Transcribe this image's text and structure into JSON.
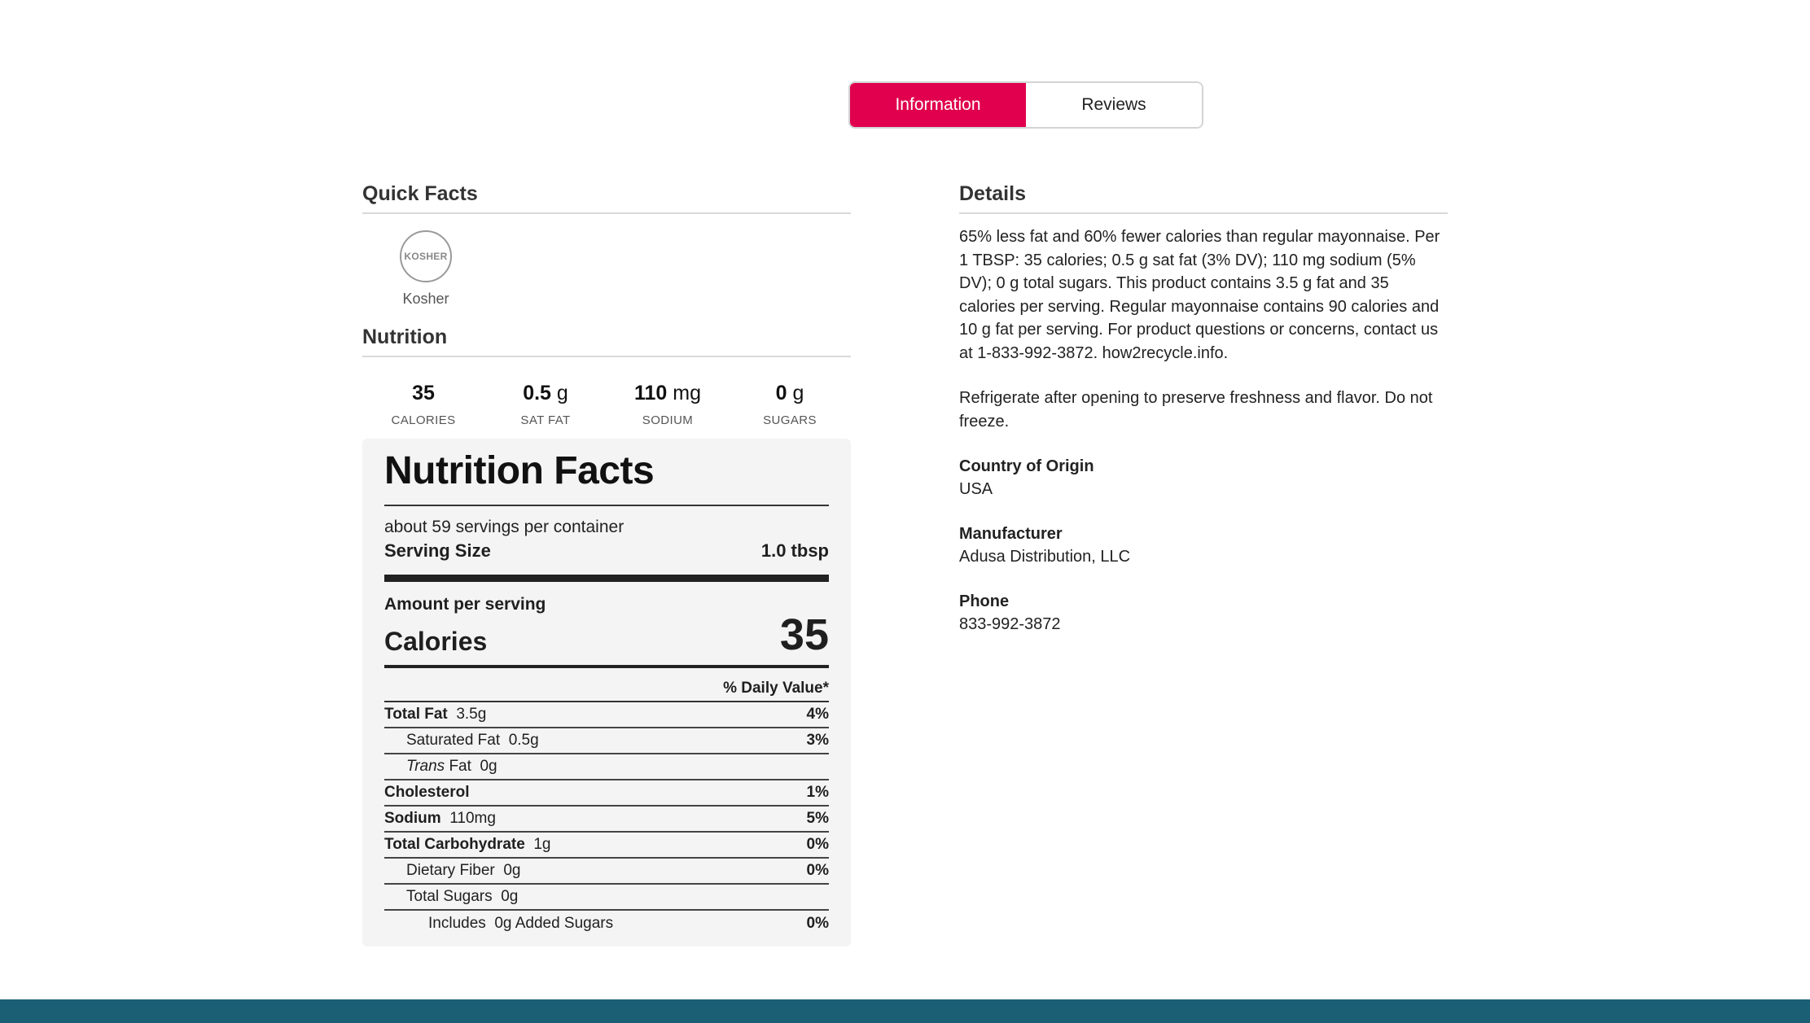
{
  "tabs": [
    {
      "label": "Information",
      "active": true
    },
    {
      "label": "Reviews",
      "active": false
    }
  ],
  "quick_facts": {
    "title": "Quick Facts",
    "badge_text": "KOSHER",
    "badge_label": "Kosher"
  },
  "nutrition": {
    "title": "Nutrition",
    "stats": [
      {
        "value": "35",
        "unit": "",
        "label": "CALORIES"
      },
      {
        "value": "0.5",
        "unit": "g",
        "label": "SAT FAT"
      },
      {
        "value": "110",
        "unit": "mg",
        "label": "SODIUM"
      },
      {
        "value": "0",
        "unit": "g",
        "label": "SUGARS"
      }
    ],
    "facts": {
      "title": "Nutrition Facts",
      "servings": "about 59 servings per container",
      "serving_size_label": "Serving Size",
      "serving_size_value": "1.0 tbsp",
      "amount_per_serving": "Amount per serving",
      "calories_label": "Calories",
      "calories_value": "35",
      "daily_value_header": "% Daily Value*",
      "rows": [
        {
          "name": "Total Fat",
          "amount": "3.5g",
          "dv": "4%",
          "bold": true,
          "italic": false,
          "indent": 0
        },
        {
          "name": "Saturated Fat",
          "amount": "0.5g",
          "dv": "3%",
          "bold": false,
          "italic": false,
          "indent": 1
        },
        {
          "name": "Trans",
          "suffix": "Fat",
          "amount": "0g",
          "dv": "",
          "bold": false,
          "italic": true,
          "indent": 1
        },
        {
          "name": "Cholesterol",
          "amount": "",
          "dv": "1%",
          "bold": true,
          "italic": false,
          "indent": 0
        },
        {
          "name": "Sodium",
          "amount": "110mg",
          "dv": "5%",
          "bold": true,
          "italic": false,
          "indent": 0
        },
        {
          "name": "Total Carbohydrate",
          "amount": "1g",
          "dv": "0%",
          "bold": true,
          "italic": false,
          "indent": 0
        },
        {
          "name": "Dietary Fiber",
          "amount": "0g",
          "dv": "0%",
          "bold": false,
          "italic": false,
          "indent": 1
        },
        {
          "name": "Total Sugars",
          "amount": "0g",
          "dv": "",
          "bold": false,
          "italic": false,
          "indent": 1
        },
        {
          "name": "Includes",
          "amount": "0g Added Sugars",
          "dv": "0%",
          "bold": false,
          "italic": false,
          "indent": 2
        }
      ]
    }
  },
  "details": {
    "title": "Details",
    "paragraphs": [
      "65% less fat and 60% fewer calories than regular mayonnaise. Per 1 TBSP: 35 calories; 0.5 g sat fat (3% DV); 110 mg sodium (5% DV); 0 g total sugars. This product contains 3.5 g fat and 35 calories per serving. Regular mayonnaise contains 90 calories and 10 g fat per serving. For product questions or concerns, contact us at 1-833-992-3872. how2recycle.info.",
      "Refrigerate after opening to preserve freshness and flavor. Do not freeze."
    ],
    "fields": [
      {
        "label": "Country of Origin",
        "value": "USA"
      },
      {
        "label": "Manufacturer",
        "value": "Adusa Distribution, LLC"
      },
      {
        "label": "Phone",
        "value": "833-992-3872"
      }
    ]
  },
  "colors": {
    "accent": "#e0004d",
    "footer": "#1a5f74"
  }
}
